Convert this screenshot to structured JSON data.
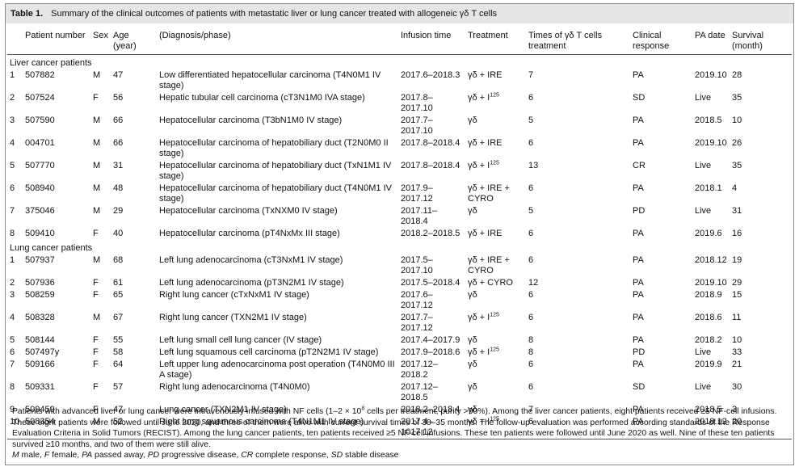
{
  "table": {
    "label": "Table 1.",
    "title": "Summary of the clinical outcomes of patients with metastatic liver or lung cancer treated with allogeneic γδ T cells",
    "headers": [
      "",
      "Patient number",
      "Sex",
      "Age (year)",
      "(Diagnosis/phase)",
      "Infusion time",
      "Treatment",
      "Times of γδ T cells treatment",
      "Clinical response",
      "PA date",
      "Survival (month)"
    ],
    "groups": [
      {
        "name": "Liver cancer patients",
        "rows": [
          [
            1,
            "507882",
            "M",
            47,
            "Low differentiated hepatocellular carcinoma (T4N0M1 IV stage)",
            "2017.6–2018.3",
            {
              "text": "γδ + IRE"
            },
            7,
            "PA",
            "2019.10",
            28
          ],
          [
            2,
            "507524",
            "F",
            56,
            "Hepatic tubular cell carcinoma (cT3N1M0 IVA stage)",
            "2017.8–2017.10",
            {
              "text": "γδ + I",
              "sup": "125"
            },
            6,
            "SD",
            "Live",
            35
          ],
          [
            3,
            "507590",
            "M",
            66,
            "Hepatocellular carcinoma (T3bN1M0 IV stage)",
            "2017.7–2017.10",
            {
              "text": "γδ"
            },
            5,
            "PA",
            "2018.5",
            10
          ],
          [
            4,
            "004701",
            "M",
            66,
            "Hepatocellular carcinoma of hepatobiliary duct (T2N0M0 II stage)",
            "2017.8–2018.4",
            {
              "text": "γδ + IRE"
            },
            6,
            "PA",
            "2019.10",
            26
          ],
          [
            5,
            "507770",
            "M",
            31,
            "Hepatocellular carcinoma of hepatobiliary duct (TxN1M1 IV stage)",
            "2017.8–2018.4",
            {
              "text": "γδ + I",
              "sup": "125"
            },
            13,
            "CR",
            "Live",
            35
          ],
          [
            6,
            "508940",
            "M",
            48,
            "Hepatocellular carcinoma of hepatobiliary duct (T4N0M1 IV stage)",
            "2017.9–2017.12",
            {
              "text": "γδ + IRE + CYRO"
            },
            6,
            "PA",
            "2018.1",
            4
          ],
          [
            7,
            "375046",
            "M",
            29,
            "Hepatocellular carcinoma (TxNXM0 IV stage)",
            "2017.11–2018.4",
            {
              "text": "γδ"
            },
            5,
            "PD",
            "Live",
            31
          ],
          [
            8,
            "509410",
            "F",
            40,
            "Hepatocellular carcinoma (pT4NxMx III stage)",
            "2018.2–2018.5",
            {
              "text": "γδ + IRE"
            },
            6,
            "PA",
            "2019.6",
            16
          ]
        ]
      },
      {
        "name": "Lung cancer patients",
        "rows": [
          [
            1,
            "507937",
            "M",
            68,
            "Left lung adenocarcinoma (cT3NxM1 IV stage)",
            "2017.5–2017.10",
            {
              "text": "γδ + IRE + CYRO"
            },
            6,
            "PA",
            "2018.12",
            19
          ],
          [
            2,
            "507936",
            "F",
            61,
            "Left lung adenocarcinoma (pT3N2M1 IV stage)",
            "2017.5–2018.4",
            {
              "text": "γδ + CYRO"
            },
            12,
            "PA",
            "2019.10",
            29
          ],
          [
            3,
            "508259",
            "F",
            65,
            "Right lung cancer (cTxNxM1 IV stage)",
            "2017.6–2017.12",
            {
              "text": "γδ"
            },
            6,
            "PA",
            "2018.9",
            15
          ],
          [
            4,
            "508328",
            "M",
            67,
            "Right lung cancer (TXN2M1 IV stage)",
            "2017.7–2017.12",
            {
              "text": "γδ + I",
              "sup": "125"
            },
            6,
            "PA",
            "2018.6",
            11
          ],
          [
            5,
            "508144",
            "F",
            55,
            "Left lung small cell lung cancer (IV stage)",
            "2017.4–2017.9",
            {
              "text": "γδ"
            },
            8,
            "PA",
            "2018.2",
            10
          ],
          [
            6,
            "507497y",
            "F",
            58,
            "Left lung squamous cell carcinoma (pT2N2M1 IV stage)",
            "2017.9–2018.6",
            {
              "text": "γδ + I",
              "sup": "125"
            },
            8,
            "PD",
            "Live",
            33
          ],
          [
            7,
            "509166",
            "F",
            64,
            "Left upper lung adenocarcinoma post operation (T4N0M0 III A stage)",
            "2017.12–2018.2",
            {
              "text": "γδ"
            },
            6,
            "PA",
            "2019.9",
            21
          ],
          [
            8,
            "509331",
            "F",
            57,
            "Right lung adenocarcinoma (T4N0M0)",
            "2017.12–2018.5",
            {
              "text": "γδ"
            },
            6,
            "SD",
            "Live",
            30
          ],
          [
            9,
            "509459",
            "F",
            47,
            "Lung cancer (TXN2M1 IV stage)",
            "2018.2–2018.4",
            {
              "text": "γδ"
            },
            7,
            "PA",
            "2018.5",
            3
          ],
          [
            10,
            "508354",
            "M",
            52,
            "Right lung squamous carcinoma (T4N1M1 IV stage)",
            "2017.4–1017.12",
            {
              "text": "γδ + I",
              "sup": "125"
            },
            6,
            "PA",
            "2018.12",
            20
          ]
        ]
      }
    ],
    "footnote": {
      "before": "Patients with advanced liver or lung cancer were intravenously infused with NF cells (1–2 × 10",
      "sup": "8",
      "after": " cells per treatment, purity >90%). Among the liver cancer patients, eight patients received ≥5 NF-cell infusions. These eight patients were followed until June 2020, and three of them were alive with current survival times of 30–35 months. The follow-up evaluation was performed according standards of the Response Evaluation Criteria in Solid Tumors (RECIST). Among the lung cancer patients, ten patients received ≥5 NF-cell infusions. These ten patients were followed until June 2020 as well. Nine of these ten patients survived ≥10 months, and two of them were still alive."
    },
    "abbreviations": [
      {
        "abbr": "M",
        "text": " male, "
      },
      {
        "abbr": "F",
        "text": " female, "
      },
      {
        "abbr": "PA",
        "text": " passed away, "
      },
      {
        "abbr": "PD",
        "text": " progressive disease, "
      },
      {
        "abbr": "CR",
        "text": " complete response, "
      },
      {
        "abbr": "SD",
        "text": " stable disease"
      }
    ]
  }
}
